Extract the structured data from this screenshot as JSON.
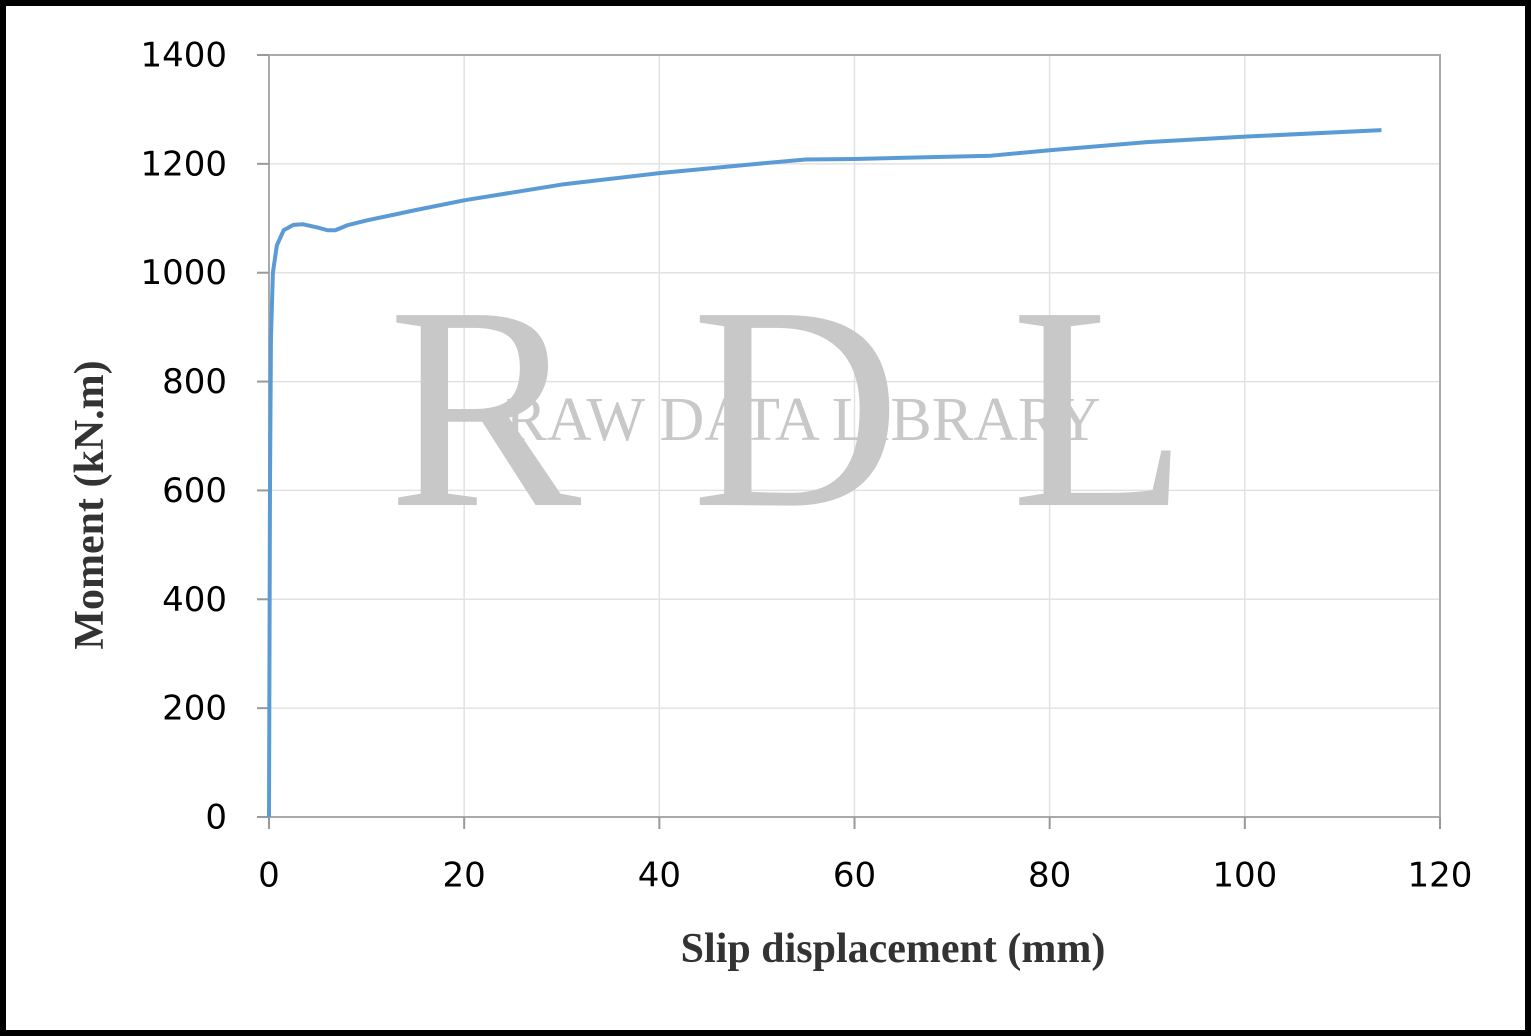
{
  "chart_data": {
    "type": "line",
    "xlabel": "Slip displacement (mm)",
    "ylabel": "Moment (kN.m)",
    "watermark": "RDL",
    "watermark_text": "RAW DATA LIBRARY",
    "x": [
      0,
      0.1,
      0.2,
      0.4,
      0.8,
      1.5,
      2.5,
      3.5,
      5,
      6,
      6.8,
      8,
      10,
      15,
      20,
      30,
      40,
      50,
      55,
      60,
      74,
      80,
      90,
      100,
      114
    ],
    "series": [
      {
        "color": "#5b9bd5",
        "values": [
          0,
          600,
          880,
          1000,
          1050,
          1078,
          1088,
          1089,
          1083,
          1078,
          1078,
          1087,
          1096,
          1115,
          1133,
          1162,
          1183,
          1200,
          1208,
          1209,
          1215,
          1225,
          1240,
          1250,
          1262
        ]
      }
    ],
    "xlim": [
      0,
      120
    ],
    "xticks": [
      0,
      20,
      40,
      60,
      80,
      100,
      120
    ],
    "ylim": [
      0,
      1400
    ],
    "yticks": [
      0,
      200,
      400,
      600,
      800,
      1000,
      1200,
      1400
    ],
    "grid": true
  }
}
